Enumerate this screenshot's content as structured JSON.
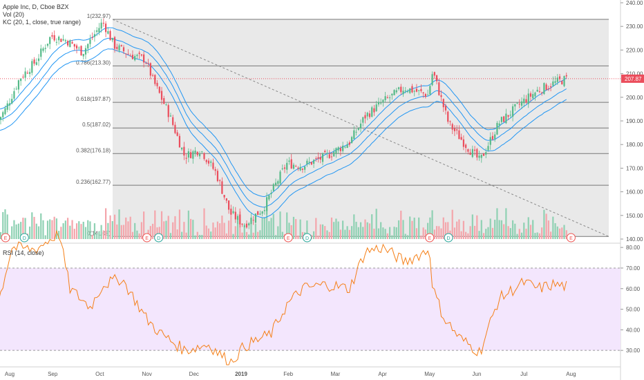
{
  "colors": {
    "up": "#53b987",
    "down": "#eb4d5c",
    "vol_up": "#8fd1b3",
    "vol_down": "#f4a5ab",
    "kc": "#2196f3",
    "rsi": "#f57f17",
    "rsi_band": "#f3e6fd",
    "fib_line": "#777777",
    "fib_shade": "#e9e9e9",
    "price_line": "#eb4d5c",
    "trend": "#888888",
    "event_e": "#ef5350",
    "event_d": "#26a69a",
    "axis_text": "#555555",
    "grid": "#eeeeee"
  },
  "legend": {
    "title": "Apple Inc, D, Cboe BZX",
    "vol": "Vol (20)",
    "kc": "KC (20, 1, close, true range)"
  },
  "rsi_legend": "RSI (14, close)",
  "price_tag": "207.87",
  "price_axis": {
    "ticks": [
      "240.00",
      "230.00",
      "220.00",
      "210.00",
      "200.00",
      "190.00",
      "180.00",
      "170.00",
      "160.00",
      "150.00",
      "140.00"
    ],
    "values": [
      240,
      230,
      220,
      210,
      200,
      190,
      180,
      170,
      160,
      150,
      140
    ]
  },
  "rsi_axis": {
    "ticks": [
      "80.00",
      "70.00",
      "60.00",
      "50.00",
      "40.00",
      "30.00"
    ],
    "values": [
      80,
      70,
      60,
      50,
      40,
      30
    ]
  },
  "time_axis": [
    "Aug",
    "Sep",
    "Oct",
    "Nov",
    "Dec",
    "2019",
    "Feb",
    "Mar",
    "Apr",
    "May",
    "Jun",
    "Jul",
    "Aug"
  ],
  "fib_levels": [
    {
      "label": "1(232.97)",
      "value": 232.97
    },
    {
      "label": "0.786(213.30)",
      "value": 213.3
    },
    {
      "label": "0.618(197.87)",
      "value": 197.87
    },
    {
      "label": "0.5(187.02)",
      "value": 187.02
    },
    {
      "label": "0.382(176.18)",
      "value": 176.18
    },
    {
      "label": "0.236(162.77)",
      "value": 162.77
    },
    {
      "label": "0(141.08)",
      "value": 141.08
    }
  ],
  "events": [
    {
      "type": "E",
      "month": 0.0
    },
    {
      "type": "D",
      "month": 0.4
    },
    {
      "type": "E",
      "month": 3.0
    },
    {
      "type": "D",
      "month": 3.25
    },
    {
      "type": "E",
      "month": 6.0
    },
    {
      "type": "D",
      "month": 6.4
    },
    {
      "type": "E",
      "month": 9.0
    },
    {
      "type": "D",
      "month": 9.4
    },
    {
      "type": "E",
      "month": 12.0
    }
  ],
  "chart_data": {
    "type": "line",
    "series": [
      {
        "name": "Apple Inc, D, Cboe BZX",
        "x": [
          "Jul 26",
          "Aug 1",
          "Aug 10",
          "Aug 20",
          "Aug 30",
          "Sep 10",
          "Sep 20",
          "Oct 3",
          "Oct 10",
          "Oct 20",
          "Oct 30",
          "Nov 5",
          "Nov 15",
          "Nov 25",
          "Dec 5",
          "Dec 15",
          "Dec 24",
          "Jan 3",
          "Jan 15",
          "Jan 30",
          "Feb 10",
          "Feb 25",
          "Mar 10",
          "Mar 20",
          "Apr 1",
          "Apr 15",
          "Apr 30",
          "May 3",
          "May 13",
          "May 25",
          "Jun 3",
          "Jun 15",
          "Jun 30",
          "Jul 10",
          "Jul 20",
          "Jul 29"
        ],
        "values": [
          190,
          195,
          208,
          215,
          226,
          224,
          219,
          232,
          222,
          218,
          216,
          207,
          193,
          175,
          178,
          168,
          151,
          146,
          153,
          172,
          171,
          175,
          181,
          192,
          198,
          204,
          201,
          211,
          189,
          179,
          173,
          189,
          198,
          203,
          206,
          208
        ]
      },
      {
        "name": "RSI",
        "x": [
          "Jul 26",
          "Aug 5",
          "Aug 20",
          "Sep 5",
          "Sep 12",
          "Sep 25",
          "Oct 3",
          "Oct 15",
          "Nov 1",
          "Nov 10",
          "Nov 25",
          "Dec 10",
          "Dec 24",
          "Jan 3",
          "Jan 20",
          "Jan 30",
          "Feb 10",
          "Feb 25",
          "Mar 10",
          "Mar 20",
          "Apr 1",
          "Apr 15",
          "May 1",
          "May 3",
          "May 10",
          "May 20",
          "Jun 3",
          "Jun 15",
          "Jul 1",
          "Jul 10",
          "Jul 20",
          "Jul 29"
        ],
        "values": [
          52,
          80,
          79,
          87,
          60,
          51,
          62,
          65,
          45,
          38,
          30,
          33,
          24,
          32,
          38,
          52,
          60,
          62,
          60,
          78,
          80,
          73,
          79,
          60,
          46,
          36,
          29,
          55,
          63,
          60,
          62,
          61
        ]
      }
    ],
    "ylim": [
      137,
      242
    ],
    "xlabel": "",
    "ylabel": ""
  }
}
